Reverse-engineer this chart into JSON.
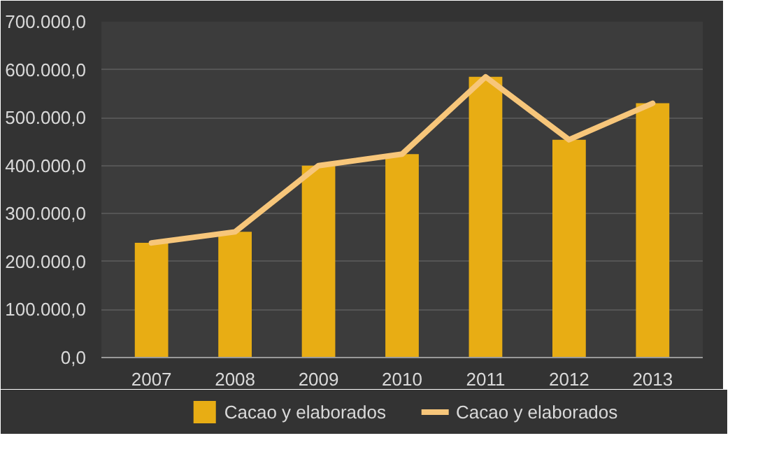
{
  "chart_data": {
    "type": "bar",
    "categories": [
      "2007",
      "2008",
      "2009",
      "2010",
      "2011",
      "2012",
      "2013"
    ],
    "series": [
      {
        "name": "Cacao y elaborados",
        "color": "#e8ad14",
        "values": [
          239000,
          262000,
          400000,
          424000,
          585000,
          454000,
          530000
        ]
      },
      {
        "name": "Cacao y elaborados",
        "type": "line",
        "color": "#f7c67a",
        "values": [
          239000,
          262000,
          400000,
          424000,
          585000,
          454000,
          530000
        ]
      }
    ],
    "ylim": [
      0,
      700000
    ],
    "yticks": [
      {
        "value": 0,
        "label": "0,0"
      },
      {
        "value": 100000,
        "label": "100.000,0"
      },
      {
        "value": 200000,
        "label": "200.000,0"
      },
      {
        "value": 300000,
        "label": "300.000,0"
      },
      {
        "value": 400000,
        "label": "400.000,0"
      },
      {
        "value": 500000,
        "label": "500.000,0"
      },
      {
        "value": 600000,
        "label": "600.000,0"
      },
      {
        "value": 700000,
        "label": "700.000,0"
      }
    ],
    "grid": "y",
    "legend": "bottom"
  }
}
